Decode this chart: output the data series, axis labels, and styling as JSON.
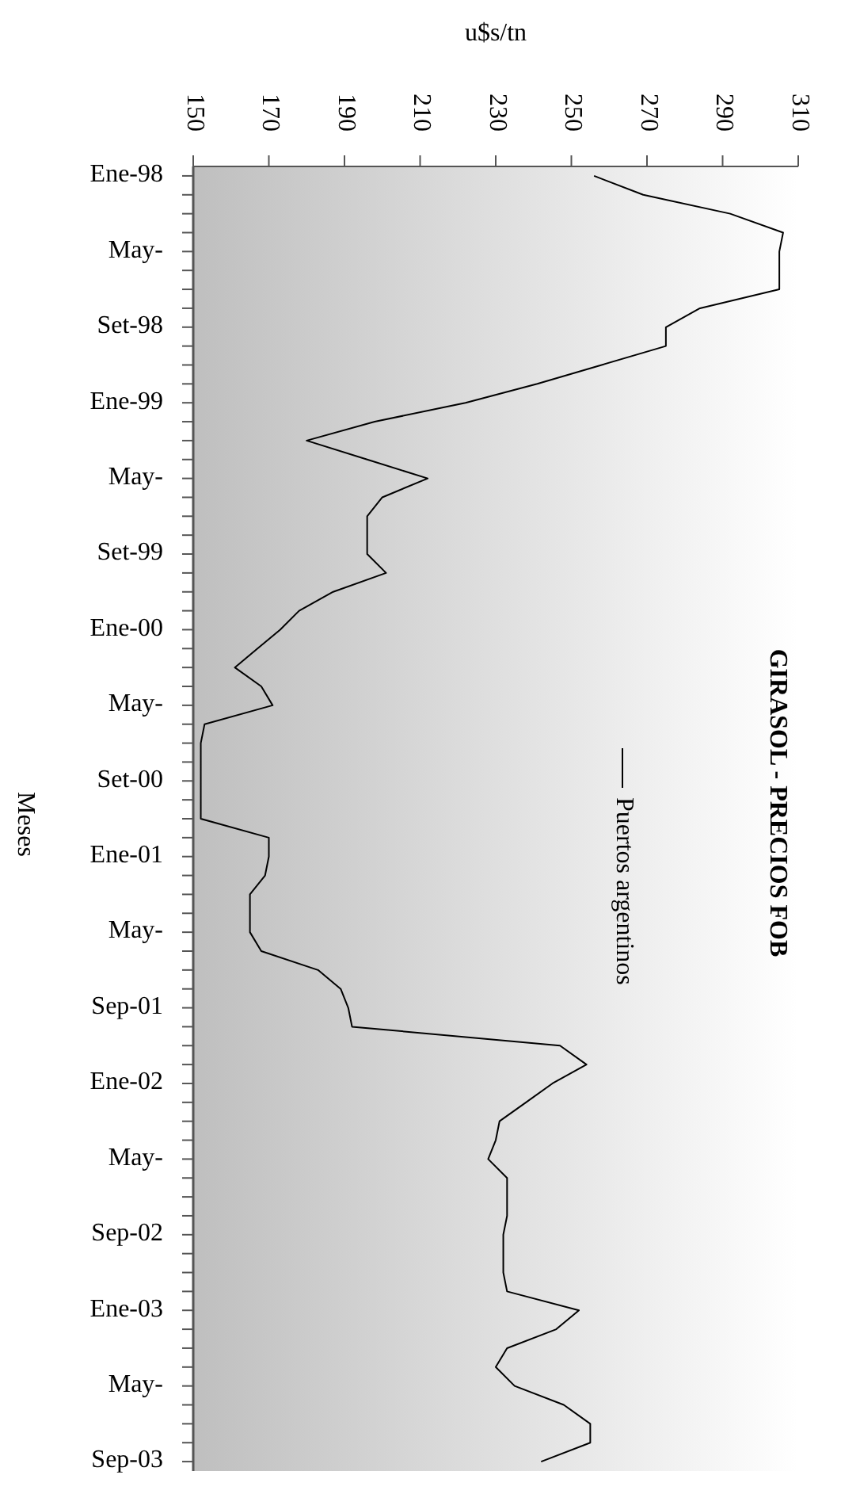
{
  "chart_data": {
    "type": "line",
    "orientation": "horizontal",
    "title": "GIRASOL - PRECIOS FOB",
    "xlabel": "u$s/tn",
    "ylabel": "Meses",
    "categories": [
      "Ene-98",
      null,
      null,
      null,
      "May-",
      null,
      null,
      null,
      "Set-98",
      null,
      null,
      null,
      "Ene-99",
      null,
      null,
      null,
      "May-",
      null,
      null,
      null,
      "Set-99",
      null,
      null,
      null,
      "Ene-00",
      null,
      null,
      null,
      "May-",
      null,
      null,
      null,
      "Set-00",
      null,
      null,
      null,
      "Ene-01",
      null,
      null,
      null,
      "May-",
      null,
      null,
      null,
      "Sep-01",
      null,
      null,
      null,
      "Ene-02",
      null,
      null,
      null,
      "May-",
      null,
      null,
      null,
      "Sep-02",
      null,
      null,
      null,
      "Ene-03",
      null,
      null,
      null,
      "May-",
      null,
      null,
      null,
      "Sep-03"
    ],
    "series": [
      {
        "name": "Puertos argentinos",
        "color": "#000000",
        "values": [
          256,
          269,
          292,
          306,
          305,
          305,
          305,
          284,
          275,
          275,
          258,
          241,
          222,
          198,
          180,
          196,
          212,
          200,
          196,
          196,
          196,
          201,
          187,
          178,
          173,
          167,
          161,
          168,
          171,
          153,
          152,
          152,
          152,
          152,
          152,
          170,
          170,
          169,
          165,
          165,
          165,
          168,
          183,
          189,
          191,
          192,
          247,
          254,
          245,
          238,
          231,
          230,
          228,
          233,
          233,
          233,
          232,
          232,
          232,
          233,
          252,
          246,
          233,
          230,
          235,
          248,
          255,
          255,
          242
        ]
      }
    ],
    "xlim": [
      150,
      310
    ],
    "xticks": [
      150,
      170,
      190,
      210,
      230,
      250,
      270,
      290,
      310
    ],
    "grid": false,
    "legend": "right",
    "marker": "none",
    "line_style": "solid"
  }
}
